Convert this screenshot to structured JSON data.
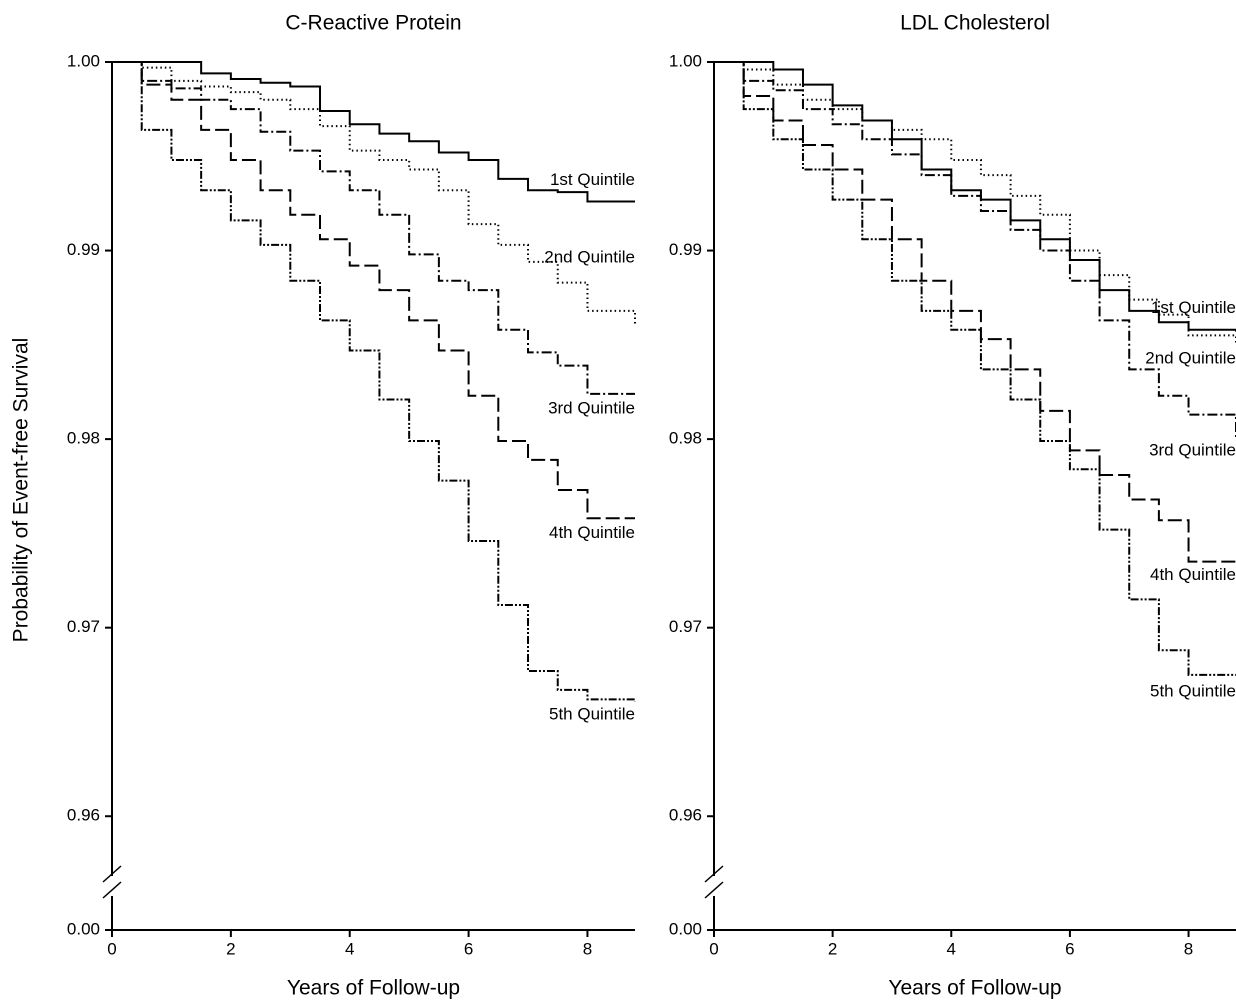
{
  "chart_data": [
    {
      "type": "line",
      "step": true,
      "title": "C-Reactive Protein",
      "x_label": "Years of Follow-up",
      "y_label": "Probability of Event-free Survival",
      "x": [
        0,
        0.5,
        1,
        1.5,
        2,
        2.5,
        3,
        3.5,
        4,
        4.5,
        5,
        5.5,
        6,
        6.5,
        7,
        7.5,
        8,
        8.8
      ],
      "xlim": [
        0,
        8.8
      ],
      "xticks": [
        0,
        2,
        4,
        6,
        8
      ],
      "ylim": [
        0.9563,
        1.0
      ],
      "y_break": true,
      "yticks": [
        {
          "value": 0,
          "label": "0.00"
        },
        {
          "value": 0.96,
          "label": "0.96"
        },
        {
          "value": 0.97,
          "label": "0.97"
        },
        {
          "value": 0.98,
          "label": "0.98"
        },
        {
          "value": 0.99,
          "label": "0.99"
        },
        {
          "value": 1.0,
          "label": "1.00"
        }
      ],
      "series": [
        {
          "name": "1st Quintile",
          "color": "#000000",
          "values": [
            1,
            1,
            1,
            0.9994,
            0.9991,
            0.9989,
            0.9987,
            0.9974,
            0.9967,
            0.9962,
            0.9958,
            0.9952,
            0.9948,
            0.9938,
            0.9932,
            0.9931,
            0.9926,
            0.9926
          ]
        },
        {
          "name": "2nd Quintile",
          "color": "#000000",
          "values": [
            1,
            0.9997,
            0.999,
            0.9987,
            0.9984,
            0.998,
            0.9975,
            0.9966,
            0.9953,
            0.9948,
            0.9943,
            0.9932,
            0.9914,
            0.9903,
            0.9894,
            0.9883,
            0.9868,
            0.986
          ]
        },
        {
          "name": "3rd Quintile",
          "color": "#000000",
          "values": [
            1,
            0.999,
            0.9986,
            0.998,
            0.9975,
            0.9963,
            0.9953,
            0.9942,
            0.9932,
            0.9919,
            0.9898,
            0.9884,
            0.9879,
            0.9858,
            0.9846,
            0.9839,
            0.9824,
            0.9824
          ]
        },
        {
          "name": "4th Quintile",
          "color": "#000000",
          "values": [
            1,
            0.9988,
            0.998,
            0.9964,
            0.9948,
            0.9932,
            0.9919,
            0.9906,
            0.9892,
            0.9879,
            0.9863,
            0.9847,
            0.9823,
            0.9799,
            0.9789,
            0.9773,
            0.9758,
            0.9758
          ]
        },
        {
          "name": "5th Quintile",
          "color": "#000000",
          "values": [
            1,
            0.9964,
            0.9948,
            0.9932,
            0.9916,
            0.9903,
            0.9884,
            0.9863,
            0.9847,
            0.9821,
            0.9799,
            0.9778,
            0.9746,
            0.9712,
            0.9677,
            0.9667,
            0.9662,
            0.9661
          ]
        }
      ]
    },
    {
      "type": "line",
      "step": true,
      "title": "LDL Cholesterol",
      "x_label": "Years of Follow-up",
      "x": [
        0,
        0.5,
        1,
        1.5,
        2,
        2.5,
        3,
        3.5,
        4,
        4.5,
        5,
        5.5,
        6,
        6.5,
        7,
        7.5,
        8,
        8.8
      ],
      "xlim": [
        0,
        8.8
      ],
      "xticks": [
        0,
        2,
        4,
        6,
        8
      ],
      "ylim": [
        0.9563,
        1.0
      ],
      "y_break": true,
      "yticks": [
        {
          "value": 0,
          "label": "0.00"
        },
        {
          "value": 0.96,
          "label": "0.96"
        },
        {
          "value": 0.97,
          "label": "0.97"
        },
        {
          "value": 0.98,
          "label": "0.98"
        },
        {
          "value": 0.99,
          "label": "0.99"
        },
        {
          "value": 1.0,
          "label": "1.00"
        }
      ],
      "series": [
        {
          "name": "1st Quintile",
          "color": "#000000",
          "values": [
            1,
            1,
            0.9996,
            0.9988,
            0.9977,
            0.9969,
            0.9959,
            0.9943,
            0.9932,
            0.9927,
            0.9916,
            0.9906,
            0.9895,
            0.9879,
            0.9868,
            0.9862,
            0.9858,
            0.9857
          ]
        },
        {
          "name": "2nd Quintile",
          "color": "#000000",
          "values": [
            1,
            0.9996,
            0.9988,
            0.998,
            0.9975,
            0.9969,
            0.9964,
            0.9959,
            0.9948,
            0.994,
            0.9929,
            0.9919,
            0.99,
            0.9887,
            0.9874,
            0.9866,
            0.9855,
            0.985
          ]
        },
        {
          "name": "3rd Quintile",
          "color": "#000000",
          "values": [
            1,
            0.999,
            0.9985,
            0.9975,
            0.9967,
            0.9959,
            0.9951,
            0.994,
            0.9929,
            0.9921,
            0.9911,
            0.99,
            0.9884,
            0.9863,
            0.9837,
            0.9823,
            0.9813,
            0.9801
          ]
        },
        {
          "name": "4th Quintile",
          "color": "#000000",
          "values": [
            1,
            0.9982,
            0.9969,
            0.9956,
            0.9943,
            0.9927,
            0.9906,
            0.9884,
            0.9868,
            0.9853,
            0.9837,
            0.9815,
            0.9794,
            0.9781,
            0.9768,
            0.9757,
            0.9735,
            0.9735
          ]
        },
        {
          "name": "5th Quintile",
          "color": "#000000",
          "values": [
            1,
            0.9975,
            0.9959,
            0.9943,
            0.9927,
            0.9906,
            0.9884,
            0.9868,
            0.9858,
            0.9837,
            0.9821,
            0.9799,
            0.9784,
            0.9752,
            0.9715,
            0.9688,
            0.9675,
            0.9675
          ]
        }
      ]
    }
  ]
}
